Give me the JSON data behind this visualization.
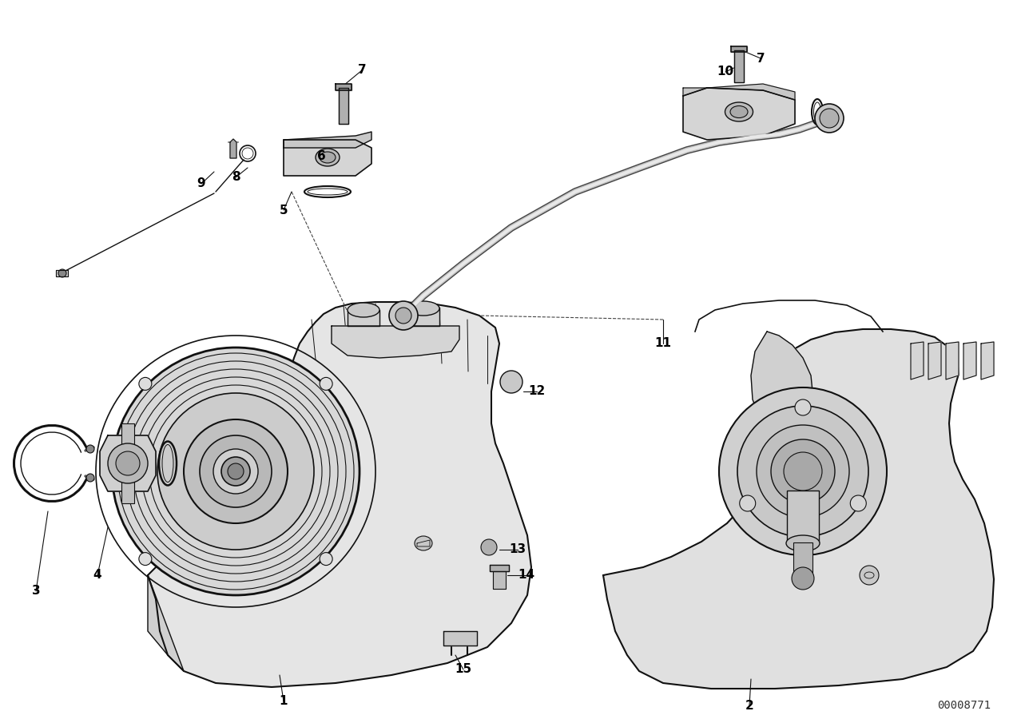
{
  "background_color": "#ffffff",
  "fig_width": 12.88,
  "fig_height": 9.1,
  "diagram_id": "00008771",
  "line_color": "#111111",
  "line_width": 1.0,
  "label_fontsize": 11,
  "id_fontsize": 10
}
